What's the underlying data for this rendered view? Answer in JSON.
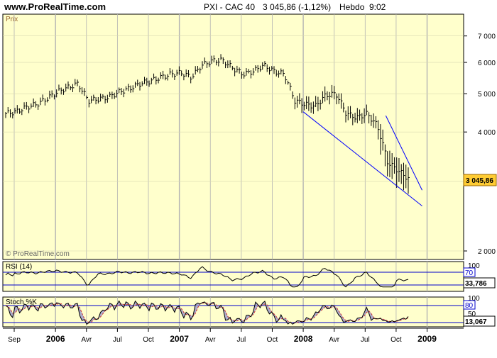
{
  "header": {
    "site": "www.ProRealTime.com",
    "instrument": "PXI - CAC 40",
    "quote": "3 045,86 (-1,12%)",
    "period": "Hebdo",
    "time": "9:02"
  },
  "colors": {
    "plot_bg": "#ffffcc",
    "frame_bg": "#e8e8e8",
    "bars": "#000000",
    "trendline": "#0000ff",
    "price_badge": "#ffcc33",
    "indicator_line": "#000000",
    "stoch_signal": "#cc3333",
    "stoch_fill": "#9999cc"
  },
  "main_panel": {
    "label": "Prix",
    "watermark": "© ProRealTime.com",
    "last_price_label": "3 045,86",
    "y_ticks": [
      "7 000",
      "6 000",
      "5 000",
      "4 000",
      "2 000"
    ],
    "y_tick_values": [
      7000,
      6000,
      5000,
      4000,
      2000
    ]
  },
  "rsi_panel": {
    "label": "RSI (14)",
    "value_label": "33,786",
    "level_label": "70",
    "tick_labels": [
      "100"
    ]
  },
  "stoch_panel": {
    "label": "Stoch %K",
    "value_label": "13,067",
    "level_label": "80",
    "tick_labels": [
      "100",
      "50"
    ]
  },
  "x_axis": {
    "labels": [
      "Sep",
      "2006",
      "Avr",
      "Jul",
      "Oct",
      "2007",
      "Avr",
      "Jul",
      "Oct",
      "2008",
      "Avr",
      "Jul",
      "Oct",
      "2009"
    ],
    "bold": [
      false,
      true,
      false,
      false,
      false,
      true,
      false,
      false,
      false,
      true,
      false,
      false,
      false,
      true
    ]
  },
  "chart_data": {
    "type": "ohlc",
    "title": "PXI - CAC 40",
    "period": "weekly",
    "y_scale": "log",
    "ylim": [
      2000,
      7500
    ],
    "x": [
      "2005-09",
      "2005-10",
      "2005-11",
      "2005-12",
      "2006-01",
      "2006-02",
      "2006-03",
      "2006-04",
      "2006-05",
      "2006-06",
      "2006-07",
      "2006-08",
      "2006-09",
      "2006-10",
      "2006-11",
      "2006-12",
      "2007-01",
      "2007-02",
      "2007-03",
      "2007-04",
      "2007-05",
      "2007-06",
      "2007-07",
      "2007-08",
      "2007-09",
      "2007-10",
      "2007-11",
      "2007-12",
      "2008-01",
      "2008-02",
      "2008-03",
      "2008-04",
      "2008-05",
      "2008-06",
      "2008-07",
      "2008-08",
      "2008-09",
      "2008-10",
      "2008-11",
      "2008-12"
    ],
    "close": [
      4450,
      4500,
      4620,
      4700,
      4860,
      5050,
      5180,
      5300,
      4800,
      4850,
      4900,
      5050,
      5150,
      5300,
      5380,
      5500,
      5600,
      5650,
      5500,
      5900,
      6050,
      6080,
      5800,
      5600,
      5700,
      5900,
      5700,
      5600,
      4800,
      4700,
      4650,
      4950,
      5000,
      4450,
      4350,
      4450,
      4150,
      3350,
      3200,
      3045.86
    ],
    "trendlines": [
      {
        "from": [
          "2008-01",
          4500
        ],
        "to": [
          "2009-01",
          2600
        ]
      },
      {
        "from": [
          "2008-09",
          4400
        ],
        "to": [
          "2009-01",
          2850
        ]
      }
    ],
    "last_value": 3045.86,
    "change_pct": -1.12,
    "indicators": {
      "rsi14": {
        "last": 33.786,
        "level": 70,
        "range": [
          0,
          100
        ]
      },
      "stoch_k": {
        "last": 13.067,
        "level": 80,
        "range": [
          0,
          100
        ]
      }
    }
  }
}
